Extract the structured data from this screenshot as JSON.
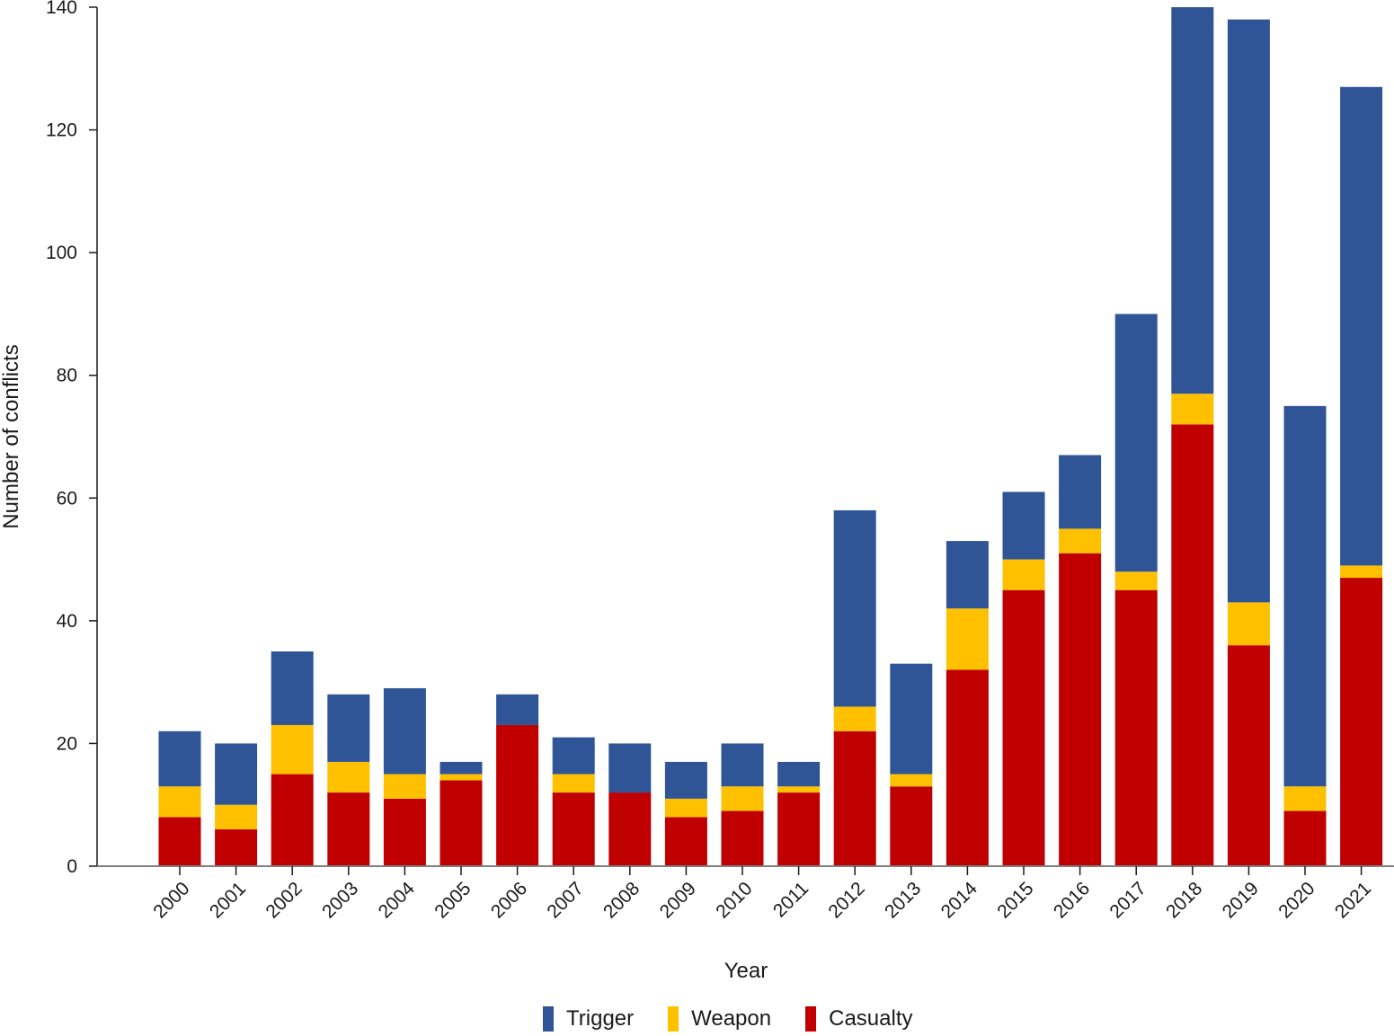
{
  "chart_data": {
    "type": "bar",
    "stacked": true,
    "title": "",
    "xlabel": "Year",
    "ylabel": "Number of conflicts",
    "ylim": [
      0,
      140
    ],
    "yticks": [
      0,
      20,
      40,
      60,
      80,
      100,
      120,
      140
    ],
    "grid": false,
    "legend_position": "bottom-center",
    "categories": [
      "2000",
      "2001",
      "2002",
      "2003",
      "2004",
      "2005",
      "2006",
      "2007",
      "2008",
      "2009",
      "2010",
      "2011",
      "2012",
      "2013",
      "2014",
      "2015",
      "2016",
      "2017",
      "2018",
      "2019",
      "2020",
      "2021"
    ],
    "series": [
      {
        "name": "Casualty",
        "color": "#c00000",
        "values": [
          8,
          6,
          15,
          12,
          11,
          14,
          23,
          12,
          12,
          8,
          9,
          12,
          22,
          13,
          32,
          45,
          51,
          45,
          72,
          36,
          9,
          47
        ]
      },
      {
        "name": "Weapon",
        "color": "#ffc000",
        "values": [
          5,
          4,
          8,
          5,
          4,
          1,
          0,
          3,
          0,
          3,
          4,
          1,
          4,
          2,
          10,
          5,
          4,
          3,
          5,
          7,
          4,
          2
        ]
      },
      {
        "name": "Trigger",
        "color": "#2f5597",
        "values": [
          9,
          10,
          12,
          11,
          14,
          2,
          5,
          6,
          8,
          6,
          7,
          4,
          32,
          18,
          11,
          11,
          12,
          42,
          63,
          95,
          62,
          78
        ]
      }
    ],
    "totals": [
      22,
      20,
      35,
      28,
      29,
      17,
      28,
      21,
      20,
      17,
      20,
      17,
      58,
      33,
      53,
      61,
      67,
      90,
      140,
      138,
      75,
      127
    ]
  },
  "legend": [
    {
      "label": "Trigger",
      "color": "#2f5597"
    },
    {
      "label": "Weapon",
      "color": "#ffc000"
    },
    {
      "label": "Casualty",
      "color": "#c00000"
    }
  ]
}
